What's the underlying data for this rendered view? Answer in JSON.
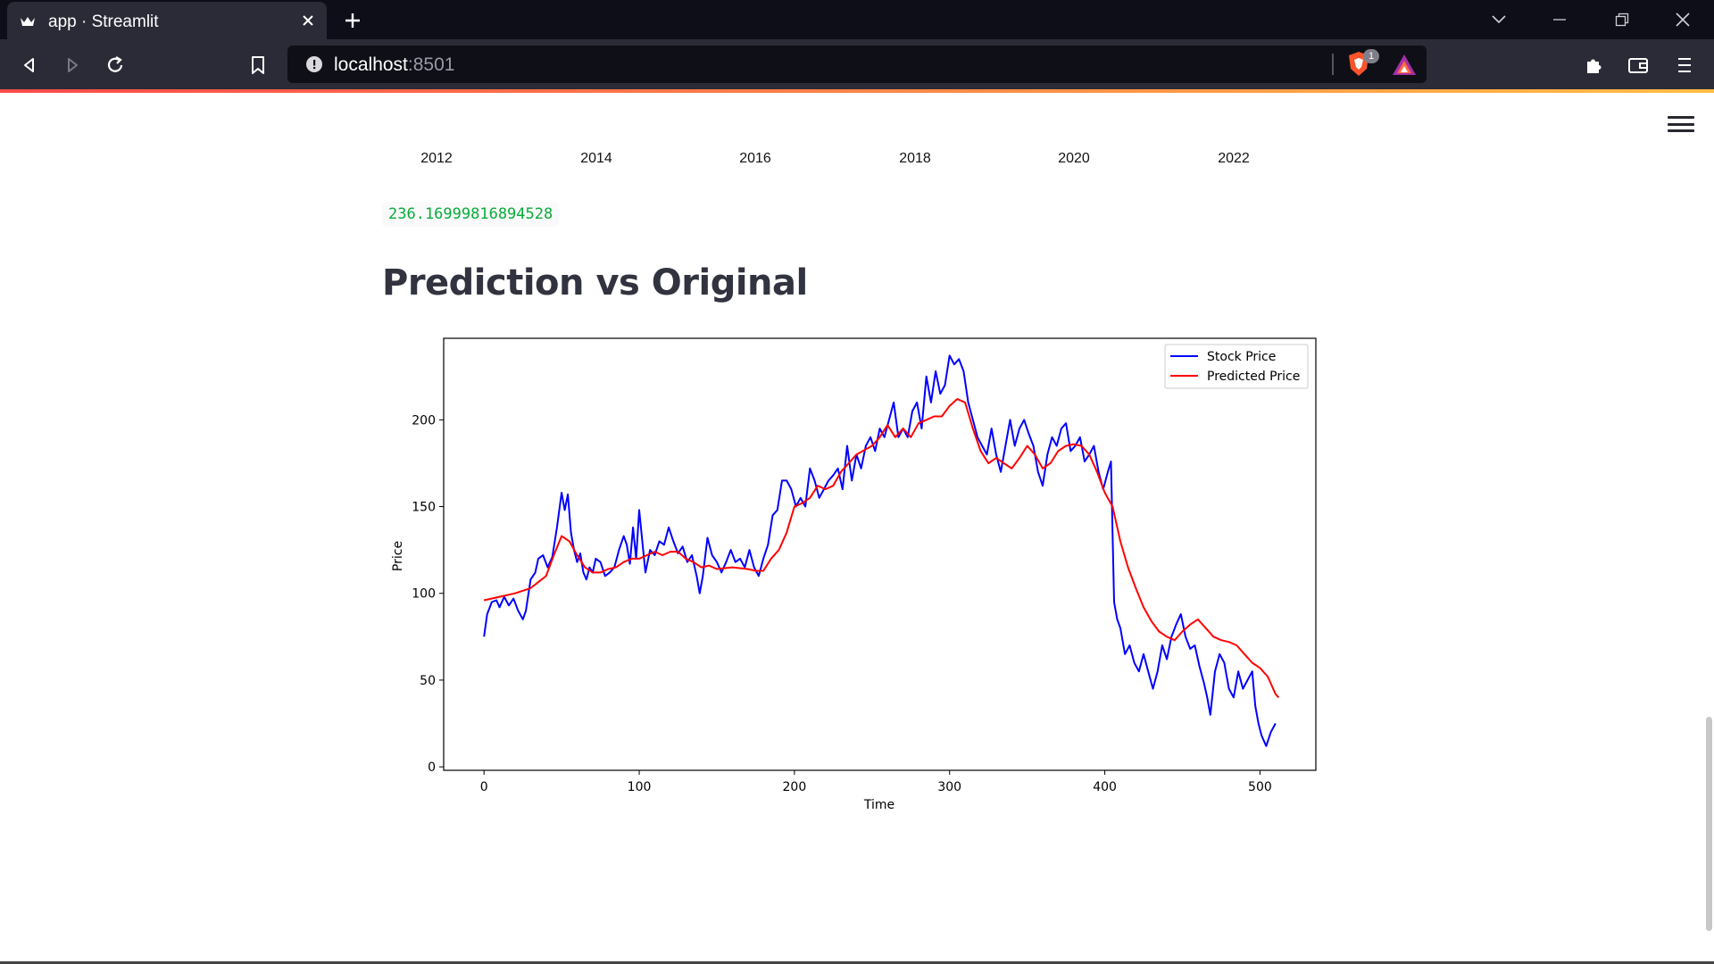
{
  "browser": {
    "tab_title": "app · Streamlit",
    "url_host": "localhost",
    "url_port": ":8501",
    "shield_badge": "1"
  },
  "page": {
    "year_ticks": [
      "2012",
      "2014",
      "2016",
      "2018",
      "2020",
      "2022"
    ],
    "value_output": "236.16999816894528",
    "section_title": "Prediction vs Original"
  },
  "chart_data": {
    "type": "line",
    "title": "",
    "xlabel": "Time",
    "ylabel": "Price",
    "xlim": [
      -26,
      536
    ],
    "ylim": [
      -2,
      247
    ],
    "x_ticks": [
      0,
      100,
      200,
      300,
      400,
      500
    ],
    "y_ticks": [
      0,
      50,
      100,
      150,
      200
    ],
    "grid": false,
    "legend_position": "top-right",
    "series": [
      {
        "name": "Stock Price",
        "color": "#0000ff",
        "points": [
          [
            0,
            75
          ],
          [
            2,
            88
          ],
          [
            5,
            95
          ],
          [
            8,
            96
          ],
          [
            10,
            92
          ],
          [
            13,
            98
          ],
          [
            16,
            93
          ],
          [
            19,
            97
          ],
          [
            22,
            90
          ],
          [
            25,
            85
          ],
          [
            27,
            90
          ],
          [
            30,
            108
          ],
          [
            33,
            112
          ],
          [
            35,
            120
          ],
          [
            38,
            122
          ],
          [
            41,
            115
          ],
          [
            44,
            121
          ],
          [
            47,
            138
          ],
          [
            50,
            158
          ],
          [
            52,
            148
          ],
          [
            54,
            157
          ],
          [
            56,
            135
          ],
          [
            58,
            125
          ],
          [
            60,
            118
          ],
          [
            62,
            123
          ],
          [
            64,
            112
          ],
          [
            66,
            108
          ],
          [
            68,
            115
          ],
          [
            70,
            112
          ],
          [
            72,
            120
          ],
          [
            75,
            118
          ],
          [
            78,
            110
          ],
          [
            81,
            112
          ],
          [
            84,
            115
          ],
          [
            87,
            125
          ],
          [
            90,
            133
          ],
          [
            92,
            128
          ],
          [
            94,
            117
          ],
          [
            96,
            138
          ],
          [
            98,
            120
          ],
          [
            100,
            148
          ],
          [
            102,
            130
          ],
          [
            104,
            112
          ],
          [
            107,
            125
          ],
          [
            110,
            122
          ],
          [
            113,
            130
          ],
          [
            116,
            128
          ],
          [
            119,
            138
          ],
          [
            122,
            130
          ],
          [
            125,
            123
          ],
          [
            128,
            127
          ],
          [
            131,
            118
          ],
          [
            134,
            122
          ],
          [
            137,
            110
          ],
          [
            139,
            100
          ],
          [
            141,
            110
          ],
          [
            144,
            132
          ],
          [
            147,
            122
          ],
          [
            150,
            118
          ],
          [
            153,
            112
          ],
          [
            156,
            118
          ],
          [
            159,
            125
          ],
          [
            162,
            118
          ],
          [
            165,
            120
          ],
          [
            168,
            115
          ],
          [
            171,
            125
          ],
          [
            174,
            115
          ],
          [
            177,
            110
          ],
          [
            180,
            120
          ],
          [
            183,
            128
          ],
          [
            186,
            145
          ],
          [
            189,
            148
          ],
          [
            192,
            165
          ],
          [
            195,
            165
          ],
          [
            198,
            160
          ],
          [
            201,
            150
          ],
          [
            204,
            155
          ],
          [
            207,
            150
          ],
          [
            210,
            172
          ],
          [
            213,
            165
          ],
          [
            216,
            155
          ],
          [
            219,
            160
          ],
          [
            222,
            165
          ],
          [
            225,
            168
          ],
          [
            228,
            172
          ],
          [
            231,
            160
          ],
          [
            234,
            185
          ],
          [
            237,
            165
          ],
          [
            240,
            180
          ],
          [
            243,
            172
          ],
          [
            246,
            185
          ],
          [
            249,
            190
          ],
          [
            252,
            182
          ],
          [
            255,
            195
          ],
          [
            258,
            190
          ],
          [
            261,
            200
          ],
          [
            264,
            210
          ],
          [
            267,
            190
          ],
          [
            270,
            195
          ],
          [
            273,
            190
          ],
          [
            276,
            205
          ],
          [
            279,
            210
          ],
          [
            282,
            195
          ],
          [
            285,
            225
          ],
          [
            288,
            210
          ],
          [
            291,
            228
          ],
          [
            294,
            215
          ],
          [
            297,
            220
          ],
          [
            300,
            237
          ],
          [
            303,
            232
          ],
          [
            306,
            235
          ],
          [
            309,
            228
          ],
          [
            312,
            210
          ],
          [
            315,
            200
          ],
          [
            318,
            190
          ],
          [
            321,
            185
          ],
          [
            324,
            180
          ],
          [
            327,
            195
          ],
          [
            330,
            180
          ],
          [
            333,
            170
          ],
          [
            336,
            185
          ],
          [
            339,
            200
          ],
          [
            342,
            185
          ],
          [
            345,
            195
          ],
          [
            348,
            200
          ],
          [
            351,
            192
          ],
          [
            354,
            185
          ],
          [
            357,
            170
          ],
          [
            360,
            162
          ],
          [
            363,
            180
          ],
          [
            366,
            190
          ],
          [
            369,
            185
          ],
          [
            372,
            195
          ],
          [
            375,
            198
          ],
          [
            378,
            182
          ],
          [
            381,
            185
          ],
          [
            384,
            190
          ],
          [
            387,
            176
          ],
          [
            390,
            180
          ],
          [
            393,
            185
          ],
          [
            396,
            170
          ],
          [
            399,
            160
          ],
          [
            402,
            170
          ],
          [
            404,
            176
          ],
          [
            406,
            95
          ],
          [
            408,
            85
          ],
          [
            410,
            80
          ],
          [
            413,
            65
          ],
          [
            416,
            70
          ],
          [
            419,
            60
          ],
          [
            422,
            55
          ],
          [
            425,
            65
          ],
          [
            428,
            55
          ],
          [
            431,
            45
          ],
          [
            434,
            55
          ],
          [
            437,
            70
          ],
          [
            440,
            62
          ],
          [
            443,
            75
          ],
          [
            446,
            82
          ],
          [
            449,
            88
          ],
          [
            452,
            75
          ],
          [
            455,
            68
          ],
          [
            458,
            70
          ],
          [
            461,
            58
          ],
          [
            464,
            48
          ],
          [
            466,
            40
          ],
          [
            468,
            30
          ],
          [
            471,
            55
          ],
          [
            474,
            65
          ],
          [
            477,
            60
          ],
          [
            480,
            45
          ],
          [
            483,
            40
          ],
          [
            486,
            55
          ],
          [
            489,
            45
          ],
          [
            492,
            50
          ],
          [
            495,
            55
          ],
          [
            497,
            35
          ],
          [
            499,
            25
          ],
          [
            501,
            18
          ],
          [
            504,
            12
          ],
          [
            507,
            20
          ],
          [
            510,
            25
          ]
        ]
      },
      {
        "name": "Predicted Price",
        "color": "#ff0000",
        "points": [
          [
            0,
            96
          ],
          [
            10,
            98
          ],
          [
            20,
            100
          ],
          [
            30,
            103
          ],
          [
            40,
            110
          ],
          [
            45,
            122
          ],
          [
            50,
            133
          ],
          [
            55,
            130
          ],
          [
            60,
            122
          ],
          [
            65,
            115
          ],
          [
            70,
            112
          ],
          [
            75,
            112
          ],
          [
            80,
            114
          ],
          [
            85,
            115
          ],
          [
            90,
            118
          ],
          [
            95,
            120
          ],
          [
            100,
            120
          ],
          [
            105,
            122
          ],
          [
            110,
            124
          ],
          [
            115,
            122
          ],
          [
            120,
            124
          ],
          [
            125,
            124
          ],
          [
            130,
            120
          ],
          [
            135,
            118
          ],
          [
            140,
            115
          ],
          [
            145,
            116
          ],
          [
            150,
            114
          ],
          [
            160,
            115
          ],
          [
            170,
            114
          ],
          [
            175,
            113
          ],
          [
            180,
            113
          ],
          [
            185,
            120
          ],
          [
            190,
            125
          ],
          [
            195,
            135
          ],
          [
            200,
            150
          ],
          [
            205,
            152
          ],
          [
            210,
            155
          ],
          [
            215,
            162
          ],
          [
            220,
            160
          ],
          [
            225,
            162
          ],
          [
            230,
            170
          ],
          [
            235,
            175
          ],
          [
            240,
            180
          ],
          [
            250,
            185
          ],
          [
            255,
            190
          ],
          [
            260,
            197
          ],
          [
            265,
            190
          ],
          [
            270,
            195
          ],
          [
            275,
            190
          ],
          [
            280,
            198
          ],
          [
            285,
            200
          ],
          [
            290,
            202
          ],
          [
            295,
            202
          ],
          [
            300,
            208
          ],
          [
            305,
            212
          ],
          [
            310,
            210
          ],
          [
            315,
            195
          ],
          [
            320,
            182
          ],
          [
            325,
            175
          ],
          [
            330,
            178
          ],
          [
            335,
            175
          ],
          [
            340,
            172
          ],
          [
            345,
            178
          ],
          [
            350,
            185
          ],
          [
            355,
            180
          ],
          [
            360,
            172
          ],
          [
            365,
            175
          ],
          [
            370,
            182
          ],
          [
            375,
            185
          ],
          [
            380,
            186
          ],
          [
            385,
            185
          ],
          [
            390,
            180
          ],
          [
            395,
            170
          ],
          [
            400,
            158
          ],
          [
            405,
            150
          ],
          [
            410,
            130
          ],
          [
            415,
            115
          ],
          [
            420,
            103
          ],
          [
            425,
            92
          ],
          [
            430,
            84
          ],
          [
            435,
            78
          ],
          [
            440,
            75
          ],
          [
            445,
            73
          ],
          [
            450,
            78
          ],
          [
            455,
            82
          ],
          [
            460,
            85
          ],
          [
            465,
            80
          ],
          [
            470,
            75
          ],
          [
            475,
            73
          ],
          [
            480,
            72
          ],
          [
            485,
            70
          ],
          [
            490,
            65
          ],
          [
            495,
            60
          ],
          [
            500,
            57
          ],
          [
            505,
            52
          ],
          [
            510,
            42
          ],
          [
            512,
            40
          ]
        ]
      }
    ]
  }
}
